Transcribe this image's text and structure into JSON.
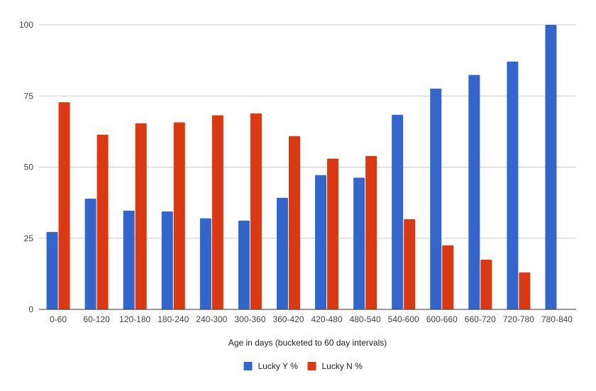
{
  "chart_data": {
    "type": "bar",
    "title": "",
    "xlabel": "Age in days (bucketed to 60 day intervals)",
    "ylabel": "",
    "ylim": [
      0,
      100
    ],
    "yticks": [
      "0",
      "25",
      "50",
      "75",
      "100"
    ],
    "grid": true,
    "legend_position": "bottom",
    "categories": [
      "0-60",
      "60-120",
      "120-180",
      "180-240",
      "240-300",
      "300-360",
      "360-420",
      "420-480",
      "480-540",
      "540-600",
      "600-660",
      "660-720",
      "720-780",
      "780-840"
    ],
    "series": [
      {
        "name": "Lucky Y %",
        "color": "#3366cc",
        "values": [
          27.2,
          38.9,
          34.7,
          34.4,
          32.0,
          31.2,
          39.2,
          47.2,
          46.3,
          68.4,
          77.6,
          82.4,
          87.1,
          100
        ]
      },
      {
        "name": "Lucky N %",
        "color": "#dc3912",
        "values": [
          72.8,
          61.4,
          65.4,
          65.7,
          68.2,
          68.9,
          60.9,
          53.0,
          53.9,
          31.7,
          22.5,
          17.5,
          13.0,
          0
        ]
      }
    ]
  }
}
